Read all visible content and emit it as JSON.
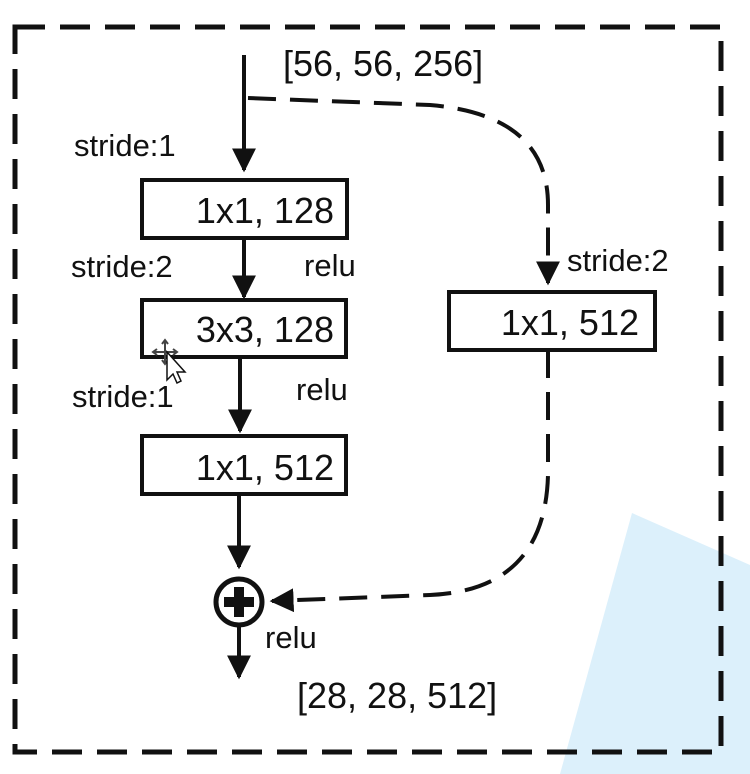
{
  "block": {
    "input_shape": "[56, 56, 256]",
    "output_shape": "[28, 28, 512]",
    "main_path": [
      {
        "stride": "stride:1",
        "op": "1x1, 128",
        "activation": "relu"
      },
      {
        "stride": "stride:2",
        "op": "3x3, 128",
        "activation": "relu"
      },
      {
        "stride": "stride:1",
        "op": "1x1, 512"
      }
    ],
    "shortcut": {
      "stride": "stride:2",
      "op": "1x1, 512"
    },
    "merge": {
      "operator": "add",
      "activation": "relu"
    }
  },
  "colors": {
    "ink": "#111111",
    "background": "#ffffff",
    "overlay": "#dcf0fb"
  },
  "icons": {
    "merge": "add-circle-icon",
    "cursor": "move-cursor-icon"
  }
}
